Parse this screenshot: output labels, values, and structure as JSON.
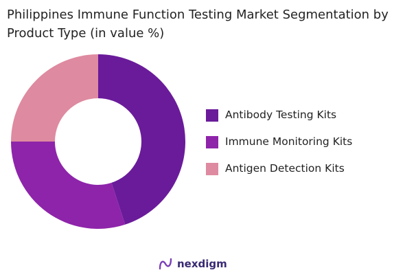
{
  "title": "Philippines Immune Function Testing Market Segmentation by Product Type (in value %)",
  "brand": {
    "name": "nexdigm",
    "icon": "nexdigm-logo-icon"
  },
  "chart_data": {
    "type": "pie",
    "variant": "donut",
    "title": "Philippines Immune Function Testing Market Segmentation by Product Type (in value %)",
    "categories": [
      "Antibody Testing Kits",
      "Immune Monitoring Kits",
      "Antigen Detection Kits"
    ],
    "values": [
      45,
      30,
      25
    ],
    "colors": [
      "#6a1b9a",
      "#8e24aa",
      "#de8aa0"
    ],
    "legend_position": "right"
  }
}
